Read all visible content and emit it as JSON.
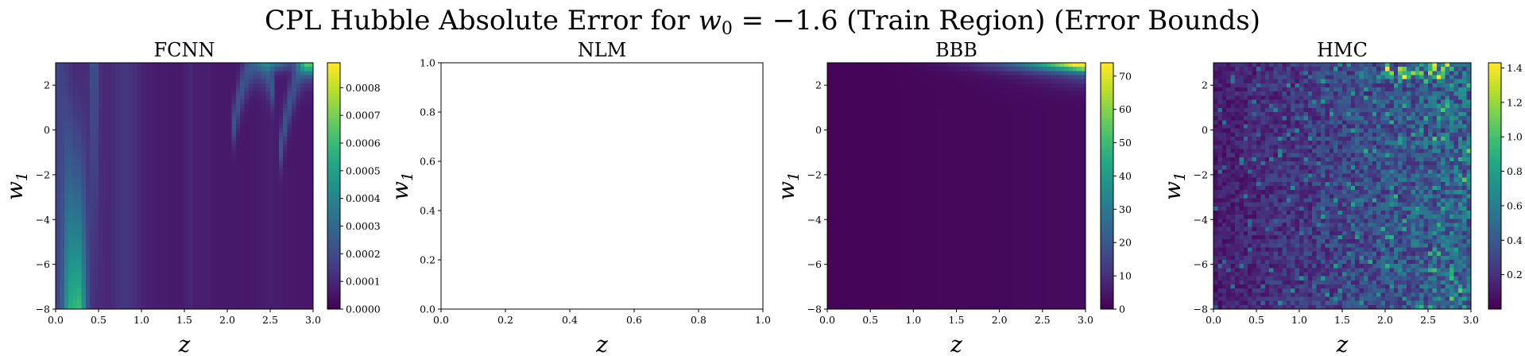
{
  "figure": {
    "title_prefix": "CPL Hubble Absolute Error for ",
    "title_var": "w",
    "title_sub": "0",
    "title_suffix": " = −1.6 (Train Region) (Error Bounds)"
  },
  "chart_data": [
    {
      "type": "heatmap",
      "title": "FCNN",
      "xlabel": "z",
      "ylabel": "w",
      "ylabel_sub": "1",
      "xlim": [
        0.0,
        3.0
      ],
      "ylim": [
        -8,
        3
      ],
      "xticks": [
        "0.0",
        "0.5",
        "1.0",
        "1.5",
        "2.0",
        "2.5",
        "3.0"
      ],
      "yticks": [
        "−8",
        "−6",
        "−4",
        "−2",
        "0",
        "2"
      ],
      "colormap": "viridis",
      "colorbar": {
        "min": 0.0,
        "max": 0.00089,
        "ticks": [
          0.0,
          0.0001,
          0.0002,
          0.0003,
          0.0004,
          0.0005,
          0.0006,
          0.0007,
          0.0008
        ],
        "tick_labels": [
          "0.0000",
          "0.0001",
          "0.0002",
          "0.0003",
          "0.0004",
          "0.0005",
          "0.0006",
          "0.0007",
          "0.0008"
        ]
      },
      "pattern": "fcnn"
    },
    {
      "type": "heatmap",
      "title": "NLM",
      "xlabel": "z",
      "ylabel": "w",
      "ylabel_sub": "1",
      "xlim": [
        0.0,
        1.0
      ],
      "ylim": [
        0.0,
        1.0
      ],
      "xticks": [
        "0.0",
        "0.2",
        "0.4",
        "0.6",
        "0.8",
        "1.0"
      ],
      "yticks": [
        "0.0",
        "0.2",
        "0.4",
        "0.6",
        "0.8",
        "1.0"
      ],
      "empty": true
    },
    {
      "type": "heatmap",
      "title": "BBB",
      "xlabel": "z",
      "ylabel": "w",
      "ylabel_sub": "1",
      "xlim": [
        0.0,
        3.0
      ],
      "ylim": [
        -8,
        3
      ],
      "xticks": [
        "0.0",
        "0.5",
        "1.0",
        "1.5",
        "2.0",
        "2.5",
        "3.0"
      ],
      "yticks": [
        "−8",
        "−6",
        "−4",
        "−2",
        "0",
        "2"
      ],
      "colormap": "viridis",
      "colorbar": {
        "min": 0,
        "max": 74,
        "ticks": [
          0,
          10,
          20,
          30,
          40,
          50,
          60,
          70
        ],
        "tick_labels": [
          "0",
          "10",
          "20",
          "30",
          "40",
          "50",
          "60",
          "70"
        ]
      },
      "pattern": "bbb"
    },
    {
      "type": "heatmap",
      "title": "HMC",
      "xlabel": "z",
      "ylabel": "w",
      "ylabel_sub": "1",
      "xlim": [
        0.0,
        3.0
      ],
      "ylim": [
        -8,
        3
      ],
      "xticks": [
        "0.0",
        "0.5",
        "1.0",
        "1.5",
        "2.0",
        "2.5",
        "3.0"
      ],
      "yticks": [
        "−8",
        "−6",
        "−4",
        "−2",
        "0",
        "2"
      ],
      "colormap": "viridis",
      "colorbar": {
        "min": 0.0,
        "max": 1.43,
        "ticks": [
          0.2,
          0.4,
          0.6,
          0.8,
          1.0,
          1.2,
          1.4
        ],
        "tick_labels": [
          "0.2",
          "0.4",
          "0.6",
          "0.8",
          "1.0",
          "1.2",
          "1.4"
        ]
      },
      "pattern": "hmc"
    }
  ]
}
